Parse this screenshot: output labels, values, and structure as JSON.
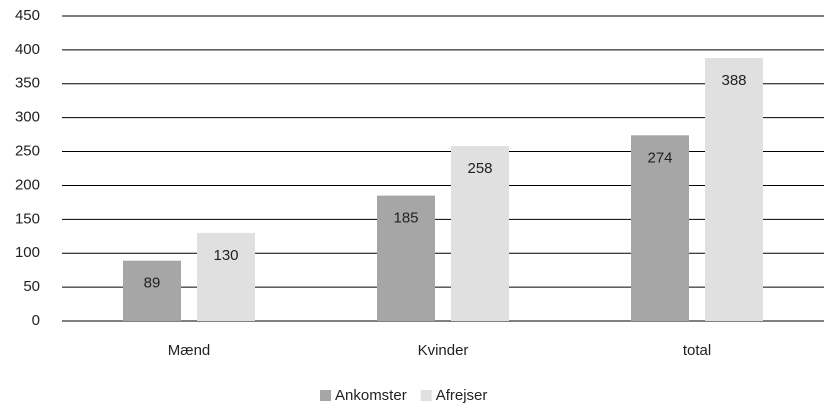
{
  "chart_data": {
    "type": "bar",
    "categories": [
      "Mænd",
      "Kvinder",
      "total"
    ],
    "series": [
      {
        "name": "Ankomster",
        "color": "#a6a6a6",
        "values": [
          89,
          185,
          274
        ]
      },
      {
        "name": "Afrejser",
        "color": "#e0e0e0",
        "values": [
          130,
          258,
          388
        ]
      }
    ],
    "ylim": [
      0,
      450
    ],
    "yticks": [
      0,
      50,
      100,
      150,
      200,
      250,
      300,
      350,
      400,
      450
    ],
    "grid": true,
    "legend": "bottom"
  }
}
